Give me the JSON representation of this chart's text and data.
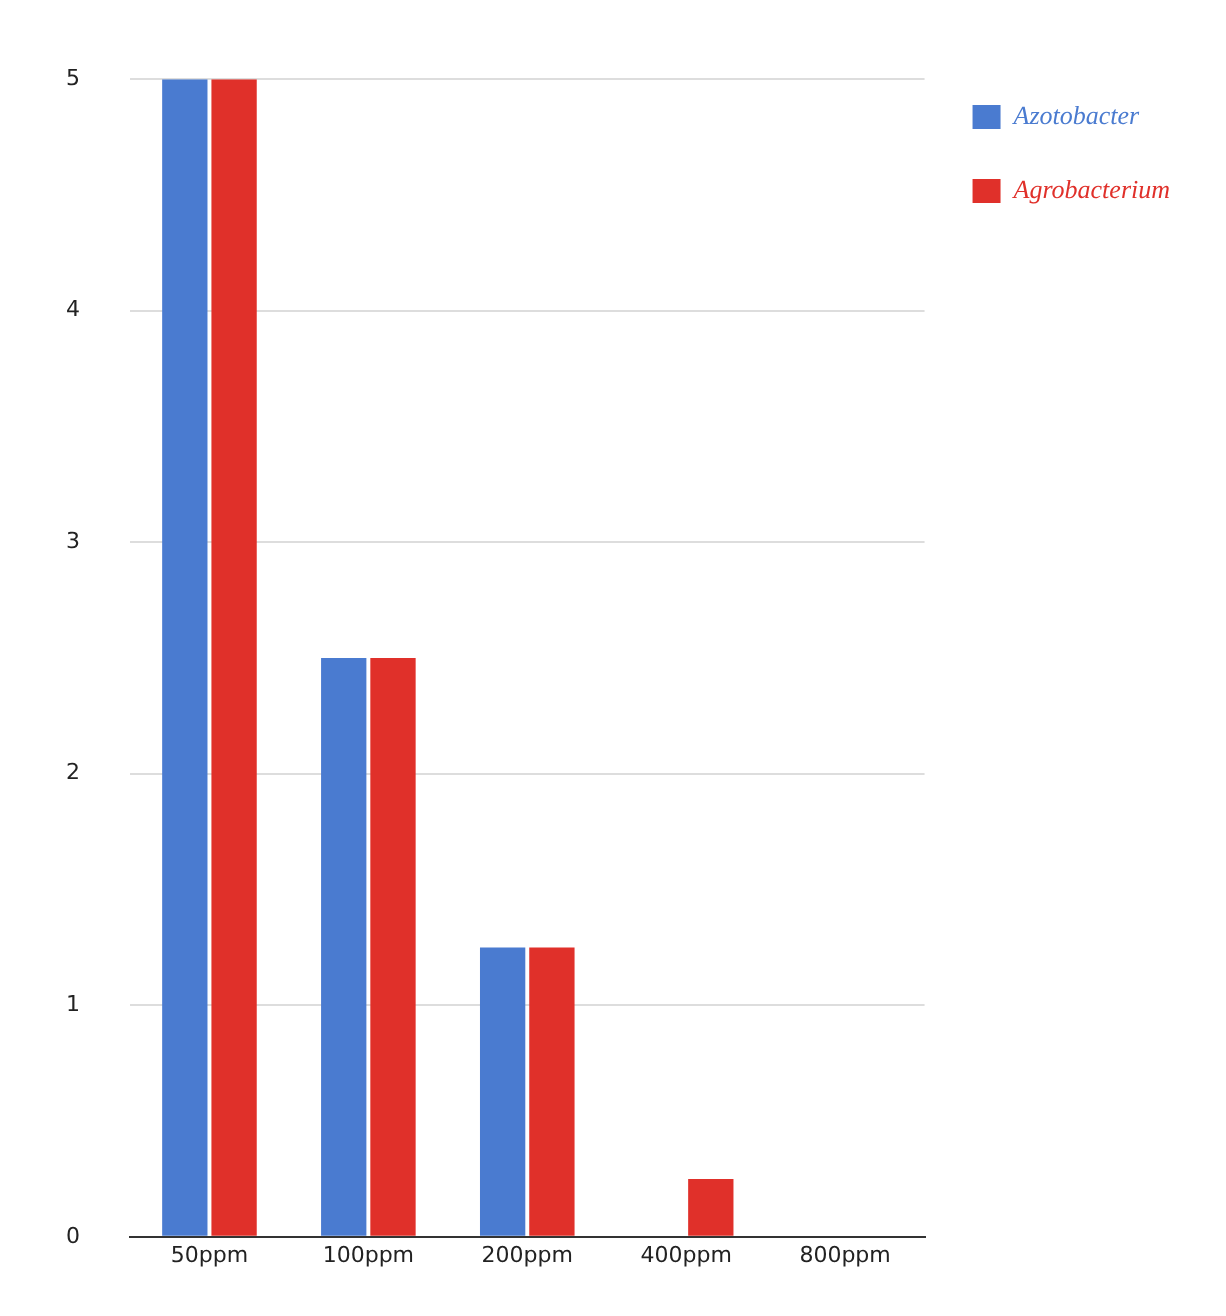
{
  "chart_data": {
    "type": "bar",
    "categories": [
      "50ppm",
      "100ppm",
      "200ppm",
      "400ppm",
      "800ppm"
    ],
    "series": [
      {
        "name": "Azotobacter",
        "color": "#4a7bd0",
        "values": [
          5,
          2.5,
          1.25,
          0,
          0
        ]
      },
      {
        "name": "Agrobacterium",
        "color": "#e0302a",
        "values": [
          5,
          2.5,
          1.25,
          0.25,
          0
        ]
      }
    ],
    "ylim": [
      0,
      5
    ],
    "yticks": [
      0,
      1,
      2,
      3,
      4,
      5
    ],
    "grid": "y",
    "legend": "top right"
  }
}
